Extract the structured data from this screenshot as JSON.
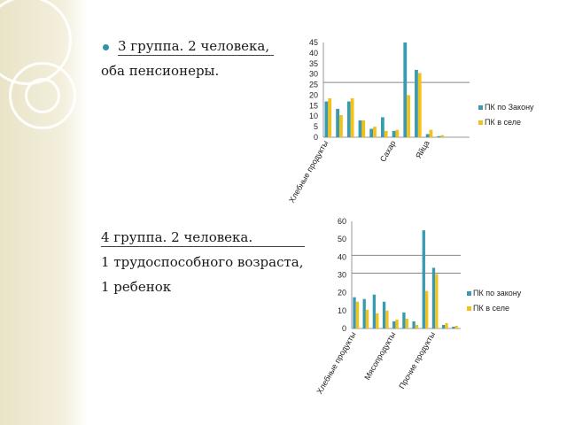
{
  "slide": {
    "group3_heading": "3 группа. 2 человека,",
    "group3_line2": "оба пенсионеры.",
    "group4_heading": "4 группа. 2 человека.",
    "group4_line2": "1 трудоспособного возраста,",
    "group4_line3": "1 ребенок"
  },
  "colors": {
    "series_a": "#3a9bb0",
    "series_b": "#f2c21b",
    "bullet": "#2f93a6"
  },
  "chart_data": [
    {
      "type": "bar",
      "categories": [
        "Хлебные продукты",
        "",
        "",
        "",
        "",
        "",
        "Сахар",
        "",
        "",
        "Яйца",
        "",
        "",
        ""
      ],
      "ylim": [
        0,
        45
      ],
      "yticks": [
        0,
        5,
        10,
        15,
        20,
        25,
        30,
        35,
        40,
        45
      ],
      "series": [
        {
          "name": "ПК по Закону",
          "values": [
            17,
            13.5,
            17,
            8,
            4,
            9.5,
            3,
            45,
            32,
            1.5,
            0.5,
            0,
            0
          ]
        },
        {
          "name": "ПК в селе",
          "values": [
            18.5,
            10.5,
            18.5,
            8,
            5,
            3,
            3.5,
            20,
            30.5,
            3.5,
            1,
            0,
            0
          ]
        }
      ]
    },
    {
      "type": "bar",
      "categories": [
        "Хлебные продукты",
        "",
        "",
        "",
        "Мясопродукты",
        "",
        "",
        "",
        "Прочие продукты",
        "",
        ""
      ],
      "ylim": [
        0,
        60
      ],
      "yticks": [
        0,
        10,
        20,
        30,
        40,
        50,
        60
      ],
      "series": [
        {
          "name": "ПК по закону",
          "values": [
            17.5,
            16.5,
            19,
            15,
            4,
            9,
            4,
            55,
            34,
            2,
            1
          ]
        },
        {
          "name": "ПК в селе",
          "values": [
            15,
            10.5,
            8.5,
            10,
            5,
            5.5,
            2,
            21,
            30.5,
            3,
            1.5
          ]
        }
      ]
    }
  ]
}
